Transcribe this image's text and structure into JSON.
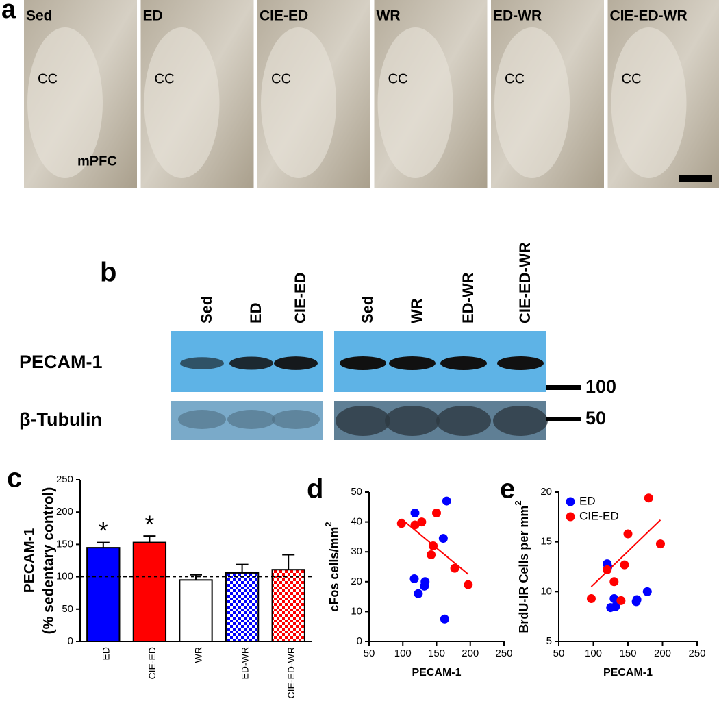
{
  "panel_a": {
    "label": "a",
    "images": [
      {
        "title": "Sed",
        "region": "CC"
      },
      {
        "title": "ED",
        "region": "CC"
      },
      {
        "title": "CIE-ED",
        "region": "CC"
      },
      {
        "title": "WR",
        "region": "CC"
      },
      {
        "title": "ED-WR",
        "region": "CC"
      },
      {
        "title": "CIE-ED-WR",
        "region": "CC"
      }
    ],
    "second_region": "mPFC"
  },
  "panel_b": {
    "label": "b",
    "lanes_left": [
      "Sed",
      "ED",
      "CIE-ED"
    ],
    "lanes_right": [
      "Sed",
      "WR",
      "ED-WR",
      "CIE-ED-WR"
    ],
    "rows": [
      "PECAM-1",
      "β-Tubulin"
    ],
    "markers": [
      "100",
      "50"
    ]
  },
  "chart_data": [
    {
      "type": "bar",
      "label": "c",
      "ylabel": [
        "PECAM-1",
        "(% sedentary control)"
      ],
      "categories": [
        "ED",
        "CIE-ED",
        "WR",
        "ED-WR",
        "CIE-ED-WR"
      ],
      "values": [
        145,
        153,
        95,
        106,
        111
      ],
      "errors": [
        8,
        10,
        8,
        13,
        23
      ],
      "colors": [
        "#0000ff",
        "#ff0000",
        "#ffffff",
        "#0000ff",
        "#ff0000"
      ],
      "fills": [
        "solid",
        "solid",
        "solid",
        "checker",
        "checker"
      ],
      "annotations": [
        "*",
        "*",
        null,
        null,
        null
      ],
      "reference_line": 100,
      "ylim": [
        0,
        250
      ],
      "yticks": [
        0,
        50,
        100,
        150,
        200,
        250
      ]
    },
    {
      "type": "scatter",
      "label": "d",
      "ylabel": "cFos cells/mm",
      "ylabel_sup": "2",
      "xlabel": "PECAM-1",
      "series": [
        {
          "name": "ED",
          "color": "#0000ff",
          "x": [
            118,
            165,
            160,
            117,
            123,
            133,
            132,
            162
          ],
          "values": [
            43,
            47,
            34.5,
            21,
            16,
            20,
            18.5,
            7.5
          ]
        },
        {
          "name": "CIE-ED",
          "color": "#ff0000",
          "x": [
            98,
            118,
            128,
            150,
            145,
            142,
            177,
            197
          ],
          "values": [
            39.5,
            39,
            40,
            43,
            32,
            29,
            24.5,
            19
          ],
          "trend": {
            "x": [
              98,
              197
            ],
            "values": [
              41,
              22.5
            ]
          }
        }
      ],
      "legend": false,
      "xlim": [
        50,
        250
      ],
      "xticks": [
        50,
        100,
        150,
        200,
        250
      ],
      "ylim": [
        0,
        50
      ],
      "yticks": [
        0,
        10,
        20,
        30,
        40,
        50
      ]
    },
    {
      "type": "scatter",
      "label": "e",
      "ylabel": "BrdU-IR Cells per mm",
      "ylabel_sup": "2",
      "xlabel": "PECAM-1",
      "series": [
        {
          "name": "ED",
          "color": "#0000ff",
          "x": [
            120,
            121,
            125,
            130,
            132,
            162,
            163,
            178
          ],
          "values": [
            12.8,
            12.5,
            8.4,
            9.3,
            8.5,
            9.0,
            9.2,
            10
          ]
        },
        {
          "name": "CIE-ED",
          "color": "#ff0000",
          "x": [
            97,
            120,
            130,
            140,
            145,
            150,
            180,
            197
          ],
          "values": [
            9.3,
            12.2,
            11,
            9.1,
            12.7,
            15.8,
            19.4,
            14.8
          ],
          "trend": {
            "x": [
              97,
              197
            ],
            "values": [
              10.5,
              17.2
            ]
          }
        }
      ],
      "legend": "upper left",
      "xlim": [
        50,
        250
      ],
      "xticks": [
        50,
        100,
        150,
        200,
        250
      ],
      "ylim": [
        5,
        20
      ],
      "yticks": [
        5,
        10,
        15,
        20
      ]
    }
  ]
}
